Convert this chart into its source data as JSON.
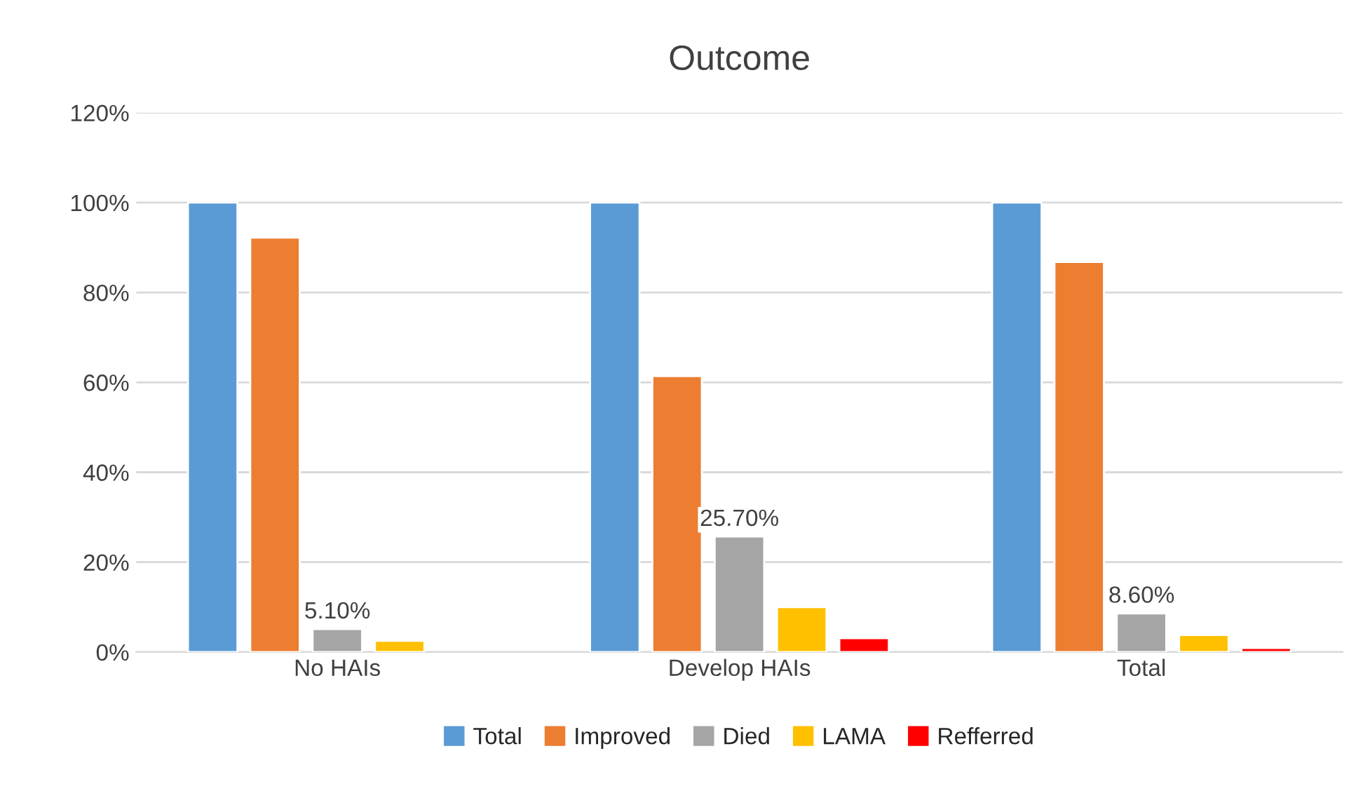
{
  "chart_data": {
    "type": "bar",
    "title": "Outcome",
    "categories": [
      "No HAIs",
      "Develop HAIs",
      "Total"
    ],
    "series": [
      {
        "name": "Total",
        "color": "#5b9bd5",
        "values": [
          100,
          100,
          100
        ]
      },
      {
        "name": "Improved",
        "color": "#ed7d31",
        "values": [
          92.2,
          61.4,
          86.8
        ]
      },
      {
        "name": "Died",
        "color": "#a5a5a5",
        "values": [
          5.1,
          25.7,
          8.6
        ],
        "value_labels": [
          "5.10%",
          "25.70%",
          "8.60%"
        ]
      },
      {
        "name": "LAMA",
        "color": "#ffc000",
        "values": [
          2.5,
          10.0,
          3.8
        ]
      },
      {
        "name": "Refferred",
        "color": "#ff0000",
        "values": [
          null,
          3.1,
          0.9
        ]
      }
    ],
    "ylim": [
      0,
      120
    ],
    "yticks": [
      {
        "value": 0,
        "label": "0%"
      },
      {
        "value": 20,
        "label": "20%"
      },
      {
        "value": 40,
        "label": "40%"
      },
      {
        "value": 60,
        "label": "60%"
      },
      {
        "value": 80,
        "label": "80%"
      },
      {
        "value": 100,
        "label": "100%"
      },
      {
        "value": 120,
        "label": "120%"
      }
    ],
    "grid": "y",
    "legend": "bottom"
  }
}
